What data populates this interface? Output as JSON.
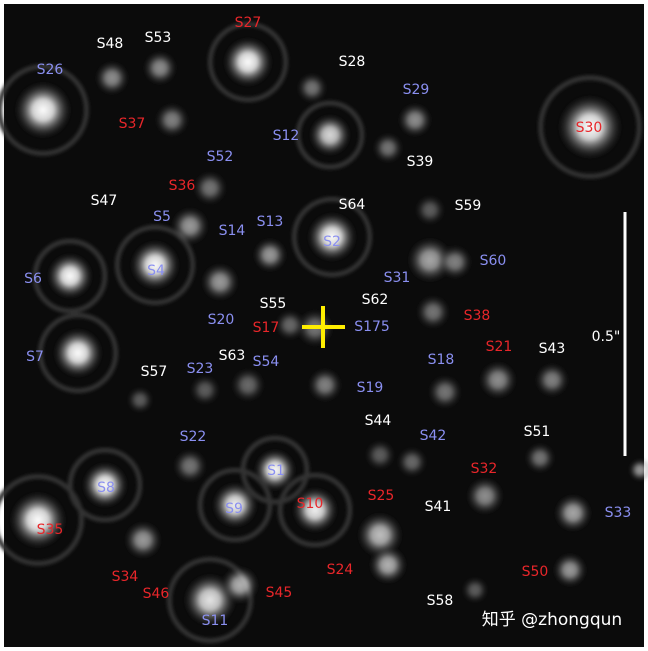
{
  "labels": [
    "S48",
    "S53",
    "S28",
    "S39",
    "S47",
    "S64",
    "S59",
    "S55",
    "S62",
    "S63",
    "S57",
    "S43",
    "S44",
    "S51",
    "S41",
    "S58",
    "0.5\"",
    "S26",
    "S29",
    "S12",
    "S52",
    "S5",
    "S14",
    "S13",
    "S2",
    "S60",
    "S6",
    "S4",
    "S31",
    "S20",
    "S175",
    "S7",
    "S23",
    "S54",
    "S18",
    "S19",
    "S22",
    "S42",
    "S1",
    "S8",
    "S9",
    "S33",
    "S11",
    "S27",
    "S37",
    "S30",
    "S36",
    "S17",
    "S38",
    "S21",
    "S32",
    "S25",
    "S10",
    "S35",
    "S34",
    "S24",
    "S50",
    "S46",
    "S45"
  ],
  "watermark": "知乎 @zhongqun"
}
